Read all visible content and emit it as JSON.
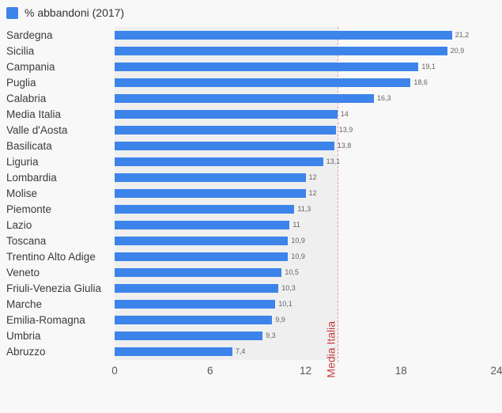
{
  "chart_data": {
    "type": "bar",
    "orientation": "horizontal",
    "legend": [
      "% abbandoni (2017)"
    ],
    "legend_position": "top-left",
    "categories": [
      "Sardegna",
      "Sicilia",
      "Campania",
      "Puglia",
      "Calabria",
      "Media Italia",
      "Valle d'Aosta",
      "Basilicata",
      "Liguria",
      "Lombardia",
      "Molise",
      "Piemonte",
      "Lazio",
      "Toscana",
      "Trentino Alto Adige",
      "Veneto",
      "Friuli-Venezia Giulia",
      "Marche",
      "Emilia-Romagna",
      "Umbria",
      "Abruzzo"
    ],
    "values": [
      21.2,
      20.9,
      19.1,
      18.6,
      16.3,
      14,
      13.9,
      13.8,
      13.1,
      12,
      12,
      11.3,
      11,
      10.9,
      10.9,
      10.5,
      10.3,
      10.1,
      9.9,
      9.3,
      7.4
    ],
    "display_values": [
      "21,2",
      "20,9",
      "19,1",
      "18,6",
      "16,3",
      "14",
      "13,9",
      "13,8",
      "13,1",
      "12",
      "12",
      "11,3",
      "11",
      "10,9",
      "10,9",
      "10,5",
      "10,3",
      "10,1",
      "9,9",
      "9,3",
      "7,4"
    ],
    "xlim": [
      0,
      24
    ],
    "x_ticks": [
      "0",
      "6",
      "12",
      "18",
      "24"
    ],
    "grid": false,
    "reference_line": {
      "label": "Media Italia",
      "value": 14
    },
    "bar_color": "#3d84ea",
    "band_color": "#efefef",
    "reference_line_color": "#e79c9c",
    "reference_label_color": "#c43b3b",
    "background_color": "#f8f8f8"
  }
}
